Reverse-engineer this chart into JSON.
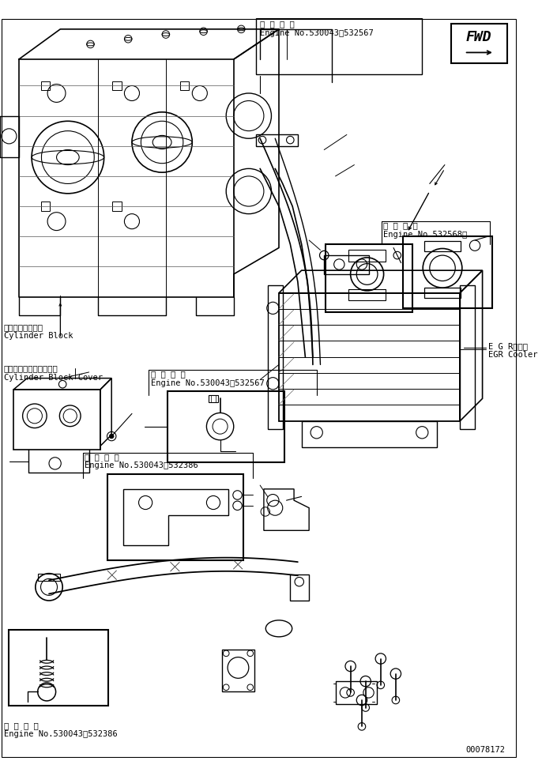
{
  "bg_color": "#ffffff",
  "fig_width": 6.86,
  "fig_height": 9.82,
  "dpi": 100,
  "part_number": "00078172",
  "labels": {
    "cylinder_block_jp": "シリンダブロック",
    "cylinder_block_en": "Cylinder Block",
    "cylinder_block_cover_jp": "シリンダブロックカバー",
    "cylinder_block_cover_en": "Cylinder Block Cover",
    "egr_cooler_jp": "E G Rクーラ",
    "egr_cooler_en": "EGR Cooler",
    "tekiyo_jp": "適 用 号 機",
    "engine_no_1": "Engine No.530043～532567",
    "engine_no_2": "Engine No.530043～532567",
    "engine_no_3": "Engine No.530043～532386",
    "engine_no_4": "Engine No.530043～532386",
    "engine_no_5": "Engine No.532568～",
    "fwd_label": "FWD"
  },
  "line_color": "#000000",
  "font_size_tiny": 6.5,
  "font_size_small": 7.5,
  "font_size_medium": 9.0,
  "font_size_large": 11
}
